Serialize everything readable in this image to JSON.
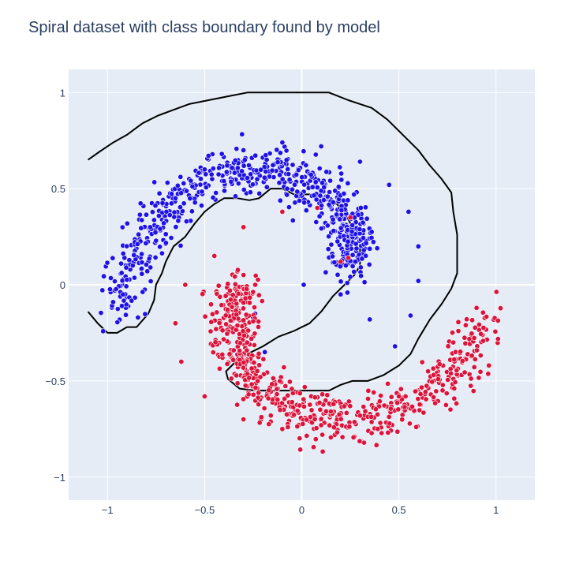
{
  "chart_data": {
    "type": "scatter",
    "title": "Spiral dataset with class boundary found by model",
    "xlabel": "",
    "ylabel": "",
    "xlim": [
      -1.2,
      1.2
    ],
    "ylim": [
      -1.12,
      1.12
    ],
    "grid": true,
    "x_ticks": [
      -1,
      -0.5,
      0,
      0.5,
      1
    ],
    "x_tick_labels": [
      "−1",
      "−0.5",
      "0",
      "0.5",
      "1"
    ],
    "y_ticks": [
      -1,
      -0.5,
      0,
      0.5,
      1
    ],
    "y_tick_labels": [
      "−1",
      "−0.5",
      "0",
      "0.5",
      "1"
    ],
    "colors": {
      "background": "#e5ecf6",
      "gridline": "#ffffff",
      "class_a": "#1f12e6",
      "class_b": "#dc143c",
      "marker_edge": "#ffffff",
      "boundary": "#000000"
    },
    "series": [
      {
        "class": "blue",
        "spiral": {
          "theta_start": 0.35,
          "theta_end": 3.3,
          "radius_start": 0.26,
          "radius_end": 0.95,
          "theta_offset": 0.0,
          "count": 650,
          "noise": 0.06
        },
        "x": [
          0.01,
          0.2,
          0.35,
          0.48,
          0.56,
          0.6,
          0.6,
          0.55,
          0.45,
          0.3,
          0.1,
          -0.1,
          -0.3,
          -0.5,
          -0.65,
          -0.78,
          -0.87,
          -0.92,
          -0.19,
          -0.25,
          -0.24
        ],
        "y": [
          0.0,
          -0.05,
          -0.18,
          -0.32,
          -0.16,
          0.02,
          0.2,
          0.38,
          0.52,
          0.64,
          0.72,
          0.74,
          0.7,
          0.6,
          0.45,
          0.3,
          0.1,
          -0.05,
          -0.35,
          -0.17,
          -0.15
        ]
      },
      {
        "class": "red",
        "spiral": {
          "theta_start": 0.0,
          "theta_end": 2.95,
          "radius_start": 0.3,
          "radius_end": 0.98,
          "theta_offset": 3.14159,
          "count": 650,
          "noise": 0.06
        },
        "x": [
          0.25,
          0.08,
          -0.1,
          -0.3,
          -0.45,
          -0.6,
          -0.65,
          -0.62,
          -0.5,
          -0.3,
          -0.1,
          0.1,
          0.3,
          0.5,
          0.65,
          0.78,
          0.9,
          0.2,
          0.24
        ],
        "y": [
          0.35,
          0.4,
          0.38,
          0.3,
          0.15,
          0.0,
          -0.2,
          -0.4,
          -0.58,
          -0.7,
          -0.75,
          -0.73,
          -0.68,
          -0.58,
          -0.45,
          -0.3,
          -0.12,
          0.12,
          0.14
        ]
      }
    ],
    "boundary_path": [
      [
        -1.1,
        -0.14
      ],
      [
        -1.05,
        -0.2
      ],
      [
        -1.0,
        -0.25
      ],
      [
        -0.95,
        -0.25
      ],
      [
        -0.9,
        -0.22
      ],
      [
        -0.85,
        -0.22
      ],
      [
        -0.79,
        -0.15
      ],
      [
        -0.76,
        -0.08
      ],
      [
        -0.75,
        0.0
      ],
      [
        -0.72,
        0.06
      ],
      [
        -0.7,
        0.12
      ],
      [
        -0.66,
        0.2
      ],
      [
        -0.6,
        0.25
      ],
      [
        -0.55,
        0.32
      ],
      [
        -0.5,
        0.38
      ],
      [
        -0.45,
        0.42
      ],
      [
        -0.4,
        0.45
      ],
      [
        -0.33,
        0.45
      ],
      [
        -0.27,
        0.44
      ],
      [
        -0.22,
        0.45
      ],
      [
        -0.16,
        0.5
      ],
      [
        -0.1,
        0.5
      ],
      [
        -0.04,
        0.47
      ],
      [
        0.0,
        0.47
      ],
      [
        0.06,
        0.47
      ],
      [
        0.12,
        0.45
      ],
      [
        0.18,
        0.42
      ],
      [
        0.22,
        0.38
      ],
      [
        0.25,
        0.32
      ],
      [
        0.28,
        0.26
      ],
      [
        0.3,
        0.22
      ],
      [
        0.3,
        0.14
      ],
      [
        0.3,
        0.1
      ],
      [
        0.27,
        0.05
      ],
      [
        0.22,
        0.0
      ],
      [
        0.16,
        -0.06
      ],
      [
        0.1,
        -0.14
      ],
      [
        0.04,
        -0.2
      ],
      [
        -0.04,
        -0.24
      ],
      [
        -0.12,
        -0.27
      ],
      [
        -0.2,
        -0.32
      ],
      [
        -0.28,
        -0.36
      ],
      [
        -0.34,
        -0.4
      ],
      [
        -0.39,
        -0.45
      ],
      [
        -0.38,
        -0.49
      ],
      [
        -0.32,
        -0.54
      ],
      [
        -0.24,
        -0.55
      ],
      [
        -0.1,
        -0.55
      ],
      [
        0.05,
        -0.55
      ],
      [
        0.14,
        -0.55
      ],
      [
        0.2,
        -0.52
      ],
      [
        0.26,
        -0.5
      ],
      [
        0.34,
        -0.5
      ],
      [
        0.42,
        -0.47
      ],
      [
        0.5,
        -0.42
      ],
      [
        0.56,
        -0.36
      ],
      [
        0.6,
        -0.28
      ],
      [
        0.66,
        -0.18
      ],
      [
        0.72,
        -0.1
      ],
      [
        0.77,
        -0.02
      ],
      [
        0.8,
        0.06
      ],
      [
        0.8,
        0.16
      ],
      [
        0.8,
        0.26
      ],
      [
        0.78,
        0.38
      ],
      [
        0.77,
        0.48
      ],
      [
        0.72,
        0.55
      ],
      [
        0.66,
        0.62
      ],
      [
        0.6,
        0.7
      ],
      [
        0.52,
        0.78
      ],
      [
        0.44,
        0.86
      ],
      [
        0.36,
        0.92
      ],
      [
        0.24,
        0.96
      ],
      [
        0.14,
        1.0
      ],
      [
        0.0,
        1.0
      ],
      [
        -0.14,
        1.0
      ],
      [
        -0.28,
        1.0
      ],
      [
        -0.38,
        0.98
      ],
      [
        -0.48,
        0.96
      ],
      [
        -0.58,
        0.94
      ],
      [
        -0.66,
        0.91
      ],
      [
        -0.74,
        0.88
      ],
      [
        -0.82,
        0.84
      ],
      [
        -0.9,
        0.78
      ],
      [
        -0.97,
        0.74
      ],
      [
        -1.03,
        0.7
      ],
      [
        -1.1,
        0.65
      ]
    ]
  }
}
